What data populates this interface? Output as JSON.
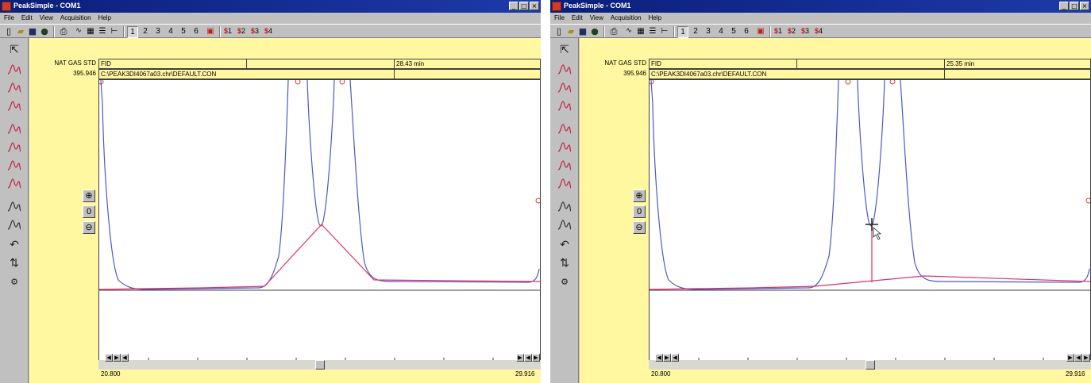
{
  "windows": [
    {
      "title": "PeakSimple - COM1",
      "menu": [
        "File",
        "Edit",
        "View",
        "Acquisition",
        "Help"
      ],
      "channels": [
        "1",
        "2",
        "3",
        "4",
        "5",
        "6"
      ],
      "channel_groups": [
        "1",
        "2",
        "3",
        "4"
      ],
      "info": {
        "sample": "NAT GAS STD",
        "detector": "FID",
        "time": "28.43 min",
        "ymax": "395.946",
        "path": "C:\\PEAK3DI4067a03.chr\\DEFAULT.CON"
      },
      "ymin": "-108.682",
      "xmin": "20.800",
      "xmax": "29.916",
      "scroll_position": 0.5,
      "baseline_mode": "valley-drop-tangent",
      "colors": {
        "trace": "#4a5ac8",
        "baseline": "#e0306a",
        "marker": "#e04040",
        "background": "#fff8a0"
      }
    },
    {
      "title": "PeakSimple - COM1",
      "menu": [
        "File",
        "Edit",
        "View",
        "Acquisition",
        "Help"
      ],
      "channels": [
        "1",
        "2",
        "3",
        "4",
        "5",
        "6"
      ],
      "channel_groups": [
        "1",
        "2",
        "3",
        "4"
      ],
      "info": {
        "sample": "NAT GAS STD",
        "detector": "FID",
        "time": "25.35 min",
        "ymax": "395.946",
        "path": "C:\\PEAK3DI4067a03.chr\\DEFAULT.CON"
      },
      "ymin": "-108.682",
      "xmin": "20.800",
      "xmax": "29.916",
      "scroll_position": 0.5,
      "baseline_mode": "perpendicular-drop",
      "colors": {
        "trace": "#4a5ac8",
        "baseline": "#e0306a",
        "marker": "#e04040",
        "background": "#fff8a0"
      }
    }
  ]
}
